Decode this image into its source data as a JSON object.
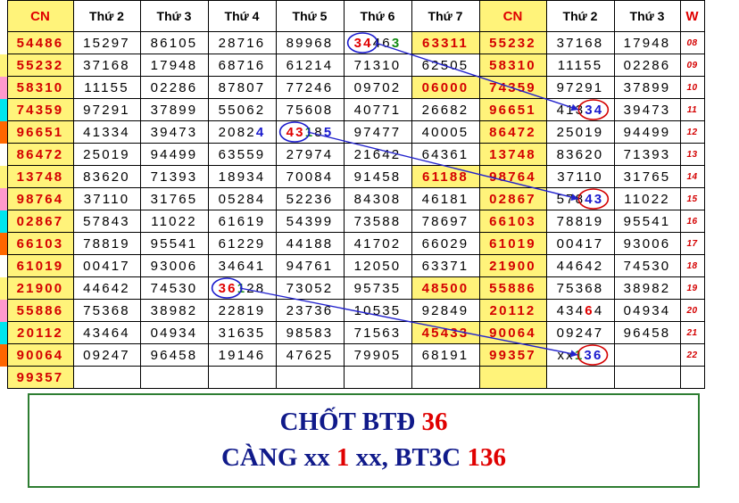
{
  "header": [
    "CN",
    "Thứ 2",
    "Thứ 3",
    "Thứ 4",
    "Thứ 5",
    "Thứ 6",
    "Thứ 7",
    "CN",
    "Thứ 2",
    "Thứ 3",
    "W"
  ],
  "rows": [
    {
      "marker": "#ffffff",
      "week": "08",
      "cells": [
        "54486",
        "15297",
        "86105",
        "28716",
        "89968",
        "34463",
        "63311",
        "55232",
        "37168",
        "17948"
      ]
    },
    {
      "marker": "#fff37a",
      "week": "09",
      "cells": [
        "55232",
        "37168",
        "17948",
        "68716",
        "61214",
        "71310",
        "62505",
        "58310",
        "11155",
        "02286"
      ]
    },
    {
      "marker": "#ff99cc",
      "week": "10",
      "cells": [
        "58310",
        "11155",
        "02286",
        "87807",
        "77246",
        "09702",
        "06000",
        "74359",
        "97291",
        "37899"
      ]
    },
    {
      "marker": "#00e5ee",
      "week": "11",
      "cells": [
        "74359",
        "97291",
        "37899",
        "55062",
        "75608",
        "40771",
        "26682",
        "96651",
        "41334",
        "39473"
      ]
    },
    {
      "marker": "#ff6600",
      "week": "12",
      "cells": [
        "96651",
        "41334",
        "39473",
        "20824",
        "43185",
        "97477",
        "40005",
        "86472",
        "25019",
        "94499"
      ]
    },
    {
      "marker": "#ffffff",
      "week": "13",
      "cells": [
        "86472",
        "25019",
        "94499",
        "63559",
        "27974",
        "21642",
        "64361",
        "13748",
        "83620",
        "71393"
      ]
    },
    {
      "marker": "#fff37a",
      "week": "14",
      "cells": [
        "13748",
        "83620",
        "71393",
        "18934",
        "70084",
        "91458",
        "61188",
        "98764",
        "37110",
        "31765"
      ]
    },
    {
      "marker": "#ff99cc",
      "week": "15",
      "cells": [
        "98764",
        "37110",
        "31765",
        "05284",
        "52236",
        "84308",
        "46181",
        "02867",
        "57843",
        "11022"
      ]
    },
    {
      "marker": "#00e5ee",
      "week": "16",
      "cells": [
        "02867",
        "57843",
        "11022",
        "61619",
        "54399",
        "73588",
        "78697",
        "66103",
        "78819",
        "95541"
      ]
    },
    {
      "marker": "#ff6600",
      "week": "17",
      "cells": [
        "66103",
        "78819",
        "95541",
        "61229",
        "44188",
        "41702",
        "66029",
        "61019",
        "00417",
        "93006"
      ]
    },
    {
      "marker": "#ffffff",
      "week": "18",
      "cells": [
        "61019",
        "00417",
        "93006",
        "34641",
        "94761",
        "12050",
        "63371",
        "21900",
        "44642",
        "74530"
      ]
    },
    {
      "marker": "#fff37a",
      "week": "19",
      "cells": [
        "21900",
        "44642",
        "74530",
        "36128",
        "73052",
        "95735",
        "48500",
        "55886",
        "75368",
        "38982"
      ]
    },
    {
      "marker": "#ff99cc",
      "week": "20",
      "cells": [
        "55886",
        "75368",
        "38982",
        "22819",
        "23736",
        "10535",
        "92849",
        "20112",
        "43464",
        "04934"
      ]
    },
    {
      "marker": "#00e5ee",
      "week": "21",
      "cells": [
        "20112",
        "43464",
        "04934",
        "31635",
        "98583",
        "71563",
        "45433",
        "90064",
        "09247",
        "96458"
      ]
    },
    {
      "marker": "#ff6600",
      "week": "22",
      "cells": [
        "90064",
        "09247",
        "96458",
        "19146",
        "47625",
        "79905",
        "68191",
        "99357",
        "xx136",
        ""
      ]
    },
    {
      "marker": "#ffffff",
      "week": "",
      "cells": [
        "99357",
        "",
        "",
        "",
        "",
        "",
        "",
        "",
        "",
        ""
      ]
    }
  ],
  "yellow_cells": [
    [
      0,
      6
    ],
    [
      2,
      6
    ],
    [
      6,
      6
    ],
    [
      11,
      6
    ],
    [
      13,
      6
    ]
  ],
  "digit_colors": [
    {
      "row": 0,
      "col": 5,
      "spans": [
        [
          "34",
          "r"
        ],
        [
          "46",
          ""
        ],
        [
          "3",
          "g"
        ]
      ]
    },
    {
      "row": 3,
      "col": 8,
      "spans": [
        [
          "413",
          ""
        ],
        [
          "34",
          "b"
        ]
      ]
    },
    {
      "row": 4,
      "col": 3,
      "spans": [
        [
          "2082",
          ""
        ],
        [
          "4",
          "b"
        ]
      ]
    },
    {
      "row": 4,
      "col": 4,
      "spans": [
        [
          "43",
          "r"
        ],
        [
          "1",
          "g"
        ],
        [
          "8",
          ""
        ],
        [
          "5",
          "b"
        ]
      ]
    },
    {
      "row": 7,
      "col": 8,
      "spans": [
        [
          "578",
          ""
        ],
        [
          "43",
          "b"
        ]
      ]
    },
    {
      "row": 11,
      "col": 3,
      "spans": [
        [
          "36",
          "r"
        ],
        [
          "1",
          "g"
        ],
        [
          "28",
          ""
        ]
      ]
    },
    {
      "row": 12,
      "col": 8,
      "spans": [
        [
          "434",
          ""
        ],
        [
          "6",
          "r"
        ],
        [
          "4",
          ""
        ]
      ]
    },
    {
      "row": 14,
      "col": 8,
      "spans": [
        [
          "xx",
          ""
        ],
        [
          "1",
          "g"
        ],
        [
          "36",
          "b"
        ]
      ]
    }
  ],
  "links": [
    {
      "from": [
        0,
        5,
        "start"
      ],
      "to": [
        3,
        8,
        "end"
      ]
    },
    {
      "from": [
        4,
        4,
        "start"
      ],
      "to": [
        7,
        8,
        "end"
      ]
    },
    {
      "from": [
        11,
        3,
        "start"
      ],
      "to": [
        14,
        8,
        "end"
      ]
    }
  ],
  "colors": {
    "grid": "#000000",
    "highlight": "#fff37a",
    "red": "#e00000",
    "blue": "#1a1acd",
    "green": "#138a13",
    "note_text": "#101a8a",
    "note_border": "#2e7d32"
  },
  "note": {
    "line1_a": "CHỐT BTĐ ",
    "line1_b": "36",
    "line2_a": "CÀNG xx ",
    "line2_b": "1",
    "line2_c": " xx, BT3C ",
    "line2_d": "136"
  }
}
